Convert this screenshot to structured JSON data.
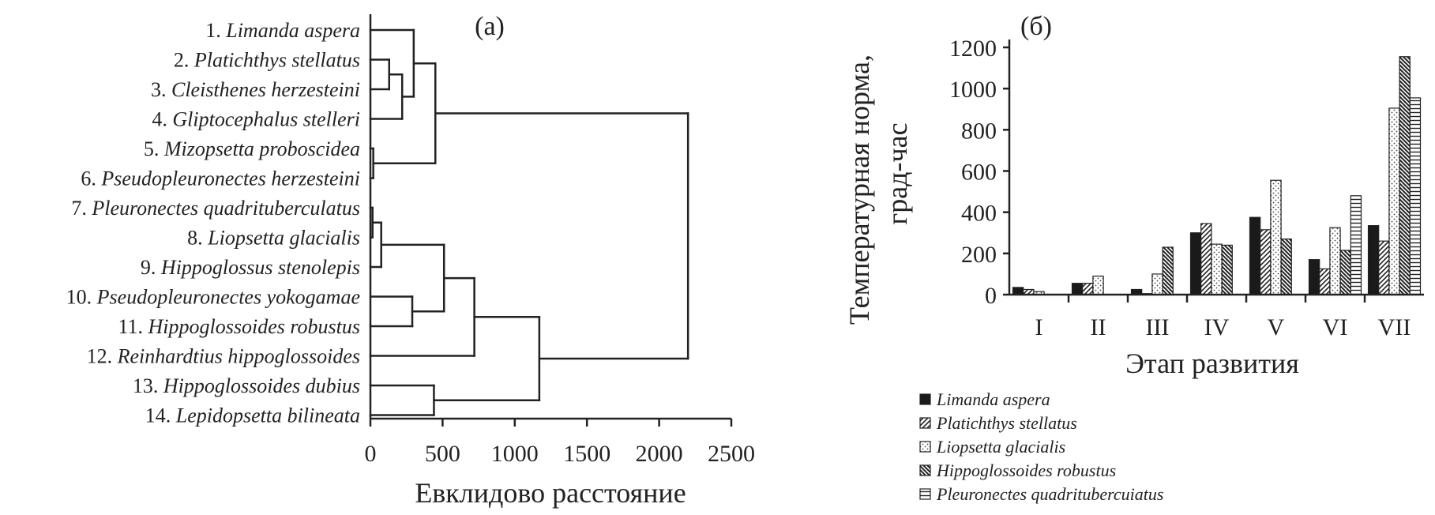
{
  "panel_a_label": "(а)",
  "panel_b_label": "(б)",
  "chart_data": [
    {
      "type": "dendrogram",
      "xlabel": "Евклидово расстояние",
      "xlim": [
        0,
        2500
      ],
      "xticks": [
        "0",
        "500",
        "1000",
        "1500",
        "2000",
        "2500"
      ],
      "leaves": [
        {
          "num": "1.",
          "name": "Limanda aspera"
        },
        {
          "num": "2.",
          "name": "Platichthys stellatus"
        },
        {
          "num": "3.",
          "name": "Cleisthenes herzesteini"
        },
        {
          "num": "4.",
          "name": "Gliptocephalus stelleri"
        },
        {
          "num": "5.",
          "name": "Mizopsetta proboscidea"
        },
        {
          "num": "6.",
          "name": "Pseudopleuronectes herzesteini"
        },
        {
          "num": "7.",
          "name": "Pleuronectes quadrituberculatus"
        },
        {
          "num": "8.",
          "name": "Liopsetta glacialis"
        },
        {
          "num": "9.",
          "name": "Hippoglossus stenolepis"
        },
        {
          "num": "10.",
          "name": "Pseudopleuronectes yokogamae"
        },
        {
          "num": "11.",
          "name": "Hippoglossoides robustus"
        },
        {
          "num": "12.",
          "name": "Reinhardtius hippoglossoides"
        },
        {
          "num": "13.",
          "name": "Hippoglossoides dubius"
        },
        {
          "num": "14.",
          "name": "Lepidopsetta bilineata"
        }
      ],
      "merges": [
        {
          "a": "L2",
          "b": "L3",
          "h": 130
        },
        {
          "a": "M0",
          "b": "L4",
          "h": 220
        },
        {
          "a": "L1",
          "b": "M1",
          "h": 300
        },
        {
          "a": "L5",
          "b": "L6",
          "h": 20
        },
        {
          "a": "M2",
          "b": "M3",
          "h": 450
        },
        {
          "a": "L7",
          "b": "L8",
          "h": 15
        },
        {
          "a": "M5",
          "b": "L9",
          "h": 75
        },
        {
          "a": "L10",
          "b": "L11",
          "h": 290
        },
        {
          "a": "M6",
          "b": "M7",
          "h": 510
        },
        {
          "a": "M8",
          "b": "L12",
          "h": 720
        },
        {
          "a": "L13",
          "b": "L14",
          "h": 440
        },
        {
          "a": "M9",
          "b": "M10",
          "h": 1170
        },
        {
          "a": "M4",
          "b": "M11",
          "h": 2200
        }
      ]
    },
    {
      "type": "bar",
      "ylabel_line1": "Температурная норма,",
      "ylabel_line2": "град-час",
      "xlabel": "Этап развития",
      "ylim": [
        0,
        1200
      ],
      "yticks": [
        "0",
        "200",
        "400",
        "600",
        "800",
        "1000",
        "1200"
      ],
      "categories": [
        "I",
        "II",
        "III",
        "IV",
        "V",
        "VI",
        "VII"
      ],
      "series": [
        {
          "name": "Limanda aspera",
          "pattern": "solid",
          "values": [
            35,
            55,
            25,
            300,
            375,
            170,
            335
          ]
        },
        {
          "name": "Platichthys stellatus",
          "pattern": "hatch",
          "values": [
            25,
            55,
            5,
            345,
            315,
            125,
            260
          ]
        },
        {
          "name": "Liopsetta glacialis",
          "pattern": "dots",
          "values": [
            15,
            90,
            100,
            245,
            555,
            325,
            905
          ]
        },
        {
          "name": "Hippoglossoides robustus",
          "pattern": "crosshatch",
          "values": [
            0,
            0,
            230,
            240,
            270,
            215,
            1155
          ]
        },
        {
          "name": "Pleuronectes quadritubercuiatus",
          "pattern": "hlines",
          "values": [
            0,
            0,
            0,
            0,
            0,
            480,
            955
          ]
        }
      ]
    }
  ]
}
